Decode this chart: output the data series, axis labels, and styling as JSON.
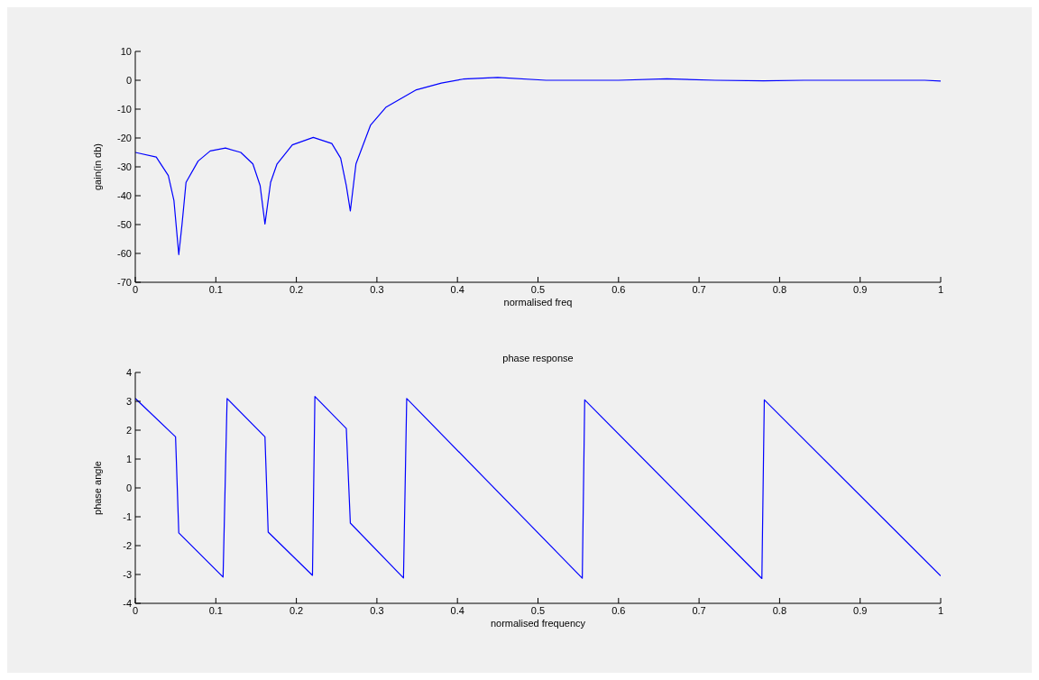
{
  "chart_data": [
    {
      "type": "line",
      "xlabel": "normalised freq",
      "ylabel": "gain(in db)",
      "xlim": [
        0,
        1
      ],
      "xticks": [
        0,
        0.1,
        0.2,
        0.3,
        0.4,
        0.5,
        0.6,
        0.7,
        0.8,
        0.9,
        1
      ],
      "ylim": [
        -70,
        10
      ],
      "yticks": [
        -70,
        -60,
        -50,
        -40,
        -30,
        -20,
        -10,
        0,
        10
      ],
      "marker": "none",
      "line_style": "solid",
      "series": [
        {
          "color": "#0000ff",
          "x": [
            0,
            0.026,
            0.041,
            0.048,
            0.054,
            0.058,
            0.063,
            0.078,
            0.093,
            0.112,
            0.131,
            0.146,
            0.155,
            0.161,
            0.168,
            0.176,
            0.195,
            0.221,
            0.244,
            0.255,
            0.262,
            0.267,
            0.274,
            0.292,
            0.311,
            0.349,
            0.38,
            0.407,
            0.45,
            0.51,
            0.6,
            0.66,
            0.72,
            0.78,
            0.83,
            0.98,
            1
          ],
          "values": [
            -25,
            -26.6,
            -33,
            -41.7,
            -60.4,
            -50,
            -35.4,
            -28,
            -24.5,
            -23.5,
            -25,
            -29,
            -36.5,
            -49.8,
            -35.4,
            -29,
            -22.4,
            -19.8,
            -21.9,
            -27,
            -36.5,
            -45.3,
            -29,
            -15.6,
            -9.4,
            -3.3,
            -1,
            0.4,
            1,
            0,
            0,
            0.5,
            0,
            -0.2,
            0,
            0,
            -0.3
          ]
        }
      ]
    },
    {
      "type": "line",
      "title": "phase response",
      "xlabel": "normalised frequency",
      "ylabel": "phase angle",
      "xlim": [
        0,
        1
      ],
      "xticks": [
        0,
        0.1,
        0.2,
        0.3,
        0.4,
        0.5,
        0.6,
        0.7,
        0.8,
        0.9,
        1
      ],
      "ylim": [
        -4,
        4
      ],
      "yticks": [
        -4,
        -3,
        -2,
        -1,
        0,
        1,
        2,
        3,
        4
      ],
      "marker": "none",
      "line_style": "solid",
      "series": [
        {
          "color": "#0000ff",
          "x": [
            0,
            0.05,
            0.054,
            0.109,
            0.114,
            0.161,
            0.165,
            0.22,
            0.223,
            0.262,
            0.267,
            0.333,
            0.337,
            0.555,
            0.558,
            0.778,
            0.781,
            1
          ],
          "values": [
            3.1,
            1.77,
            -1.56,
            -3.09,
            3.1,
            1.77,
            -1.53,
            -3.03,
            3.17,
            2.06,
            -1.22,
            -3.12,
            3.1,
            -3.13,
            3.05,
            -3.14,
            3.05,
            -3.05
          ]
        }
      ]
    }
  ]
}
